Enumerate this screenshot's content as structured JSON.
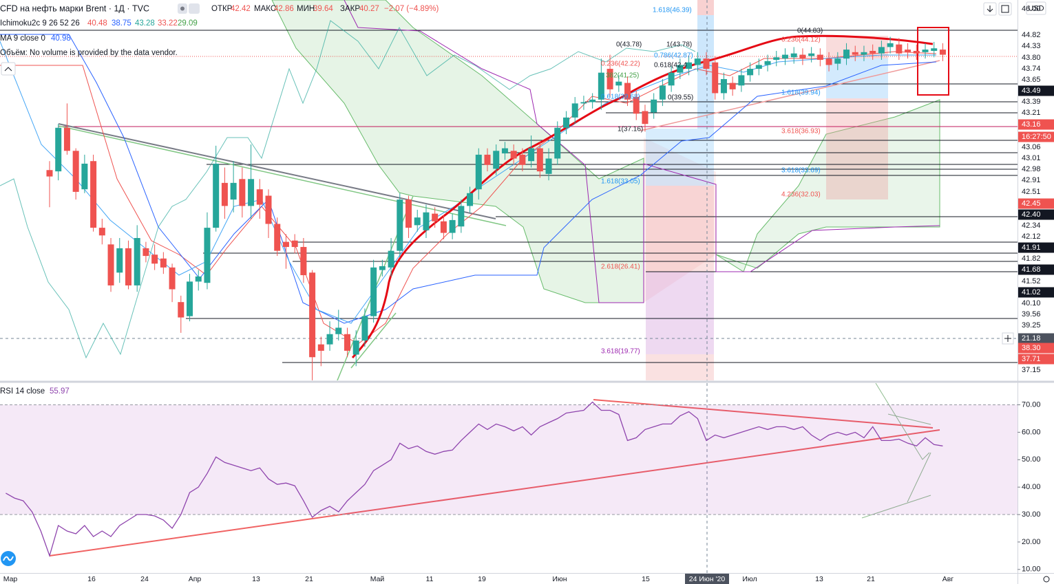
{
  "header": {
    "symbol": "CFD на нефть марки Brent · 1Д · TVC",
    "ohlc": [
      {
        "label": "ОТКР",
        "value": "42.42"
      },
      {
        "label": "МАКС",
        "value": "42.86"
      },
      {
        "label": "МИН",
        "value": "39.64"
      },
      {
        "label": "ЗАКР",
        "value": "40.27"
      }
    ],
    "change": "−2.07 (−4.89%)",
    "ichimoku": {
      "name": "Ichimoku2c 9 26 52 26",
      "values": [
        "40.48",
        "38.75",
        "43.28",
        "33.22",
        "29.09"
      ]
    },
    "ma": {
      "name": "MA 9 close 0",
      "value": "40.98"
    },
    "volume": "Объём: No volume is provided by the data vendor."
  },
  "currency": "USD",
  "chart_data": [
    {
      "type": "candlestick",
      "up_color": "#26a69a",
      "down_color": "#ef5350",
      "ylim": [
        17.89,
        47.57
      ],
      "open": [
        34.3,
        34.2,
        37.6,
        35.8,
        32.8,
        35,
        29.8,
        28.5,
        26.3,
        28.2,
        25.3,
        28.2,
        27.7,
        27.4,
        26.7,
        24,
        22.9,
        25.6,
        25.5,
        29.8,
        33.3,
        32,
        33.6,
        31.5,
        32.8,
        32.3,
        30.1,
        28.7,
        28.8,
        28.3,
        26.3,
        20.7,
        20.7,
        21.5,
        21.5,
        19.9,
        21,
        22.9,
        26.5,
        26.7,
        28,
        32,
        30,
        29.6,
        30.9,
        30.3,
        29.4,
        29.9,
        31.5,
        32.8,
        35.5,
        34.4,
        35.6,
        35.8,
        35.5,
        35,
        36,
        34,
        35.2,
        37.6,
        38.4,
        39.5,
        39.6,
        39.8,
        42.2,
        40.9,
        41.1,
        40,
        38.9,
        38.8,
        39.8,
        40.9,
        41.9,
        42.2,
        42.5,
        43,
        42.7,
        40.3,
        41.1,
        40.9,
        41.7,
        42.2,
        42.5,
        42.9,
        43,
        43.1,
        43.3,
        43.2,
        43.3,
        43,
        42.6,
        43,
        43.5,
        43.3,
        43.6,
        43.4,
        43.9,
        44.1,
        43.7,
        43.6,
        43.5,
        43.6,
        43.7
      ],
      "high": [
        35,
        37.9,
        39.5,
        36,
        35.5,
        35.5,
        30.5,
        29,
        29,
        28.8,
        30,
        28.7,
        28.5,
        27.9,
        27,
        24.5,
        26.2,
        26.5,
        31,
        36.2,
        34.5,
        35,
        34.5,
        36.3,
        33.6,
        32.8,
        30.6,
        29.3,
        29.3,
        29,
        26.5,
        21.3,
        22.5,
        23.4,
        22,
        21.8,
        23.5,
        27.3,
        27.3,
        29,
        32.5,
        32.3,
        31.2,
        31.6,
        31.4,
        30.8,
        30.9,
        32,
        33,
        36,
        36,
        36.3,
        36.5,
        36.3,
        36,
        37,
        36.5,
        36,
        38.1,
        38.9,
        40,
        40.1,
        40.3,
        43,
        43.3,
        41.7,
        41.6,
        40.5,
        39.4,
        40.3,
        41.4,
        42.4,
        43,
        43.2,
        43.5,
        43.5,
        43.2,
        41.9,
        41.6,
        42.2,
        42.7,
        43,
        43.3,
        43.6,
        43.8,
        43.9,
        43.8,
        43.9,
        43.8,
        43.5,
        43.5,
        44.2,
        44,
        44,
        44.1,
        44.4,
        44.7,
        44.6,
        44.2,
        44.1,
        44.2,
        44.3,
        44.2
      ],
      "low": [
        31.4,
        33.5,
        35.5,
        32,
        32.5,
        29.5,
        28.5,
        24.8,
        25.5,
        25,
        24.8,
        27.1,
        26.5,
        26.2,
        24,
        21.6,
        22.5,
        24.9,
        25,
        29.5,
        30.5,
        31,
        30.6,
        30.5,
        30.5,
        29,
        27.6,
        26.6,
        27.8,
        25.5,
        17.9,
        19,
        20.2,
        21,
        19.7,
        19,
        20.5,
        22.4,
        26,
        26,
        27.5,
        29,
        29.5,
        29,
        29.8,
        28.9,
        28.9,
        29.4,
        31,
        32,
        34.2,
        33.9,
        35.1,
        34.7,
        34.2,
        34.5,
        33.7,
        33.5,
        34.7,
        37.1,
        37.9,
        39,
        39.1,
        39,
        40,
        40.4,
        39.3,
        38.2,
        37.3,
        38.3,
        39.3,
        40.4,
        41.4,
        41.7,
        42,
        41.7,
        39.8,
        39.8,
        40.1,
        40.4,
        41.2,
        41.7,
        42,
        42.4,
        42.5,
        42.6,
        42.5,
        42.7,
        42.4,
        42,
        42.1,
        42.5,
        42.8,
        42.8,
        42.9,
        42.9,
        43.4,
        42.9,
        43,
        42.9,
        43,
        43.1,
        42.8
      ],
      "close": [
        33.8,
        37.6,
        35.8,
        32.6,
        34.8,
        29.8,
        29.2,
        25.3,
        28.2,
        25.3,
        29,
        27.6,
        27.0,
        26.7,
        25.0,
        22.8,
        25.6,
        26,
        29.8,
        34.8,
        31.5,
        33.3,
        31.5,
        33.6,
        31.6,
        30.1,
        28,
        28.3,
        28.3,
        26.1,
        19.7,
        20.2,
        21.5,
        22,
        20.2,
        21,
        22.9,
        26.7,
        26.8,
        28,
        32,
        29.8,
        30.6,
        31,
        30.3,
        29.4,
        30.4,
        31.5,
        32.5,
        35.5,
        34.7,
        35.8,
        36,
        35.2,
        34.7,
        36,
        34.2,
        35.2,
        37.6,
        38.4,
        39.5,
        39.6,
        39.8,
        41.9,
        40.6,
        41.2,
        39.8,
        38.7,
        37.9,
        39.8,
        40.9,
        41.9,
        42.5,
        42.7,
        43,
        42.2,
        40.3,
        41.4,
        40.6,
        41.7,
        42.2,
        42.5,
        42.8,
        43.1,
        43.3,
        43.4,
        43,
        43.4,
        42.9,
        42.5,
        43,
        43.7,
        43.3,
        43.5,
        43.4,
        43.9,
        44.2,
        43.4,
        43.5,
        43.4,
        43.7,
        43.8,
        43.3
      ],
      "price_axis_labels": [
        "46.00",
        "44.82",
        "44.33",
        "43.80",
        "43.74",
        "43.65",
        "43.49",
        "43.39",
        "43.21",
        "43.16",
        "16:27:50",
        "43.06",
        "43.01",
        "42.98",
        "42.91",
        "42.51",
        "42.45",
        "42.40",
        "42.34",
        "42.12",
        "41.91",
        "41.82",
        "41.68",
        "41.52",
        "41.02",
        "40.10",
        "39.56",
        "39.25",
        "21.18",
        "38.30",
        "37.71",
        "37.15"
      ],
      "fib_labels": [
        "1.618(46.39)",
        "0(43.78)",
        "1(43.78)",
        "0.236(42.22)",
        "0.786(42.87)",
        "0.618(42.4",
        "382(41.25)",
        "0.618(39.68)",
        "0(39.55)",
        "1(37.16)",
        "0(44.83)",
        "0.236(44.12)",
        "1.618(39.94)",
        "3.618(36.93)",
        "3.618(33.69)",
        "4.236(32.03)",
        "1.618(33.05)",
        "2.618(26.41)",
        "3.618(19.77)"
      ],
      "x_axis_labels": [
        "Мар",
        "16",
        "24",
        "Апр",
        "13",
        "21",
        "Май",
        "11",
        "19",
        "Июн",
        "15",
        "24 Июн '20",
        "Июл",
        "13",
        "21",
        "Авг"
      ]
    },
    {
      "type": "line",
      "title": "RSI 14 close",
      "last_value": "55.97",
      "color": "#8e44ad",
      "band": [
        30,
        70
      ],
      "band_color": "#9c27b0",
      "ylim": [
        8.7,
        77.9
      ],
      "yticks": [
        {
          "value": 70,
          "label": "70.00"
        },
        {
          "value": 60,
          "label": "60.00"
        },
        {
          "value": 50,
          "label": "50.00"
        },
        {
          "value": 40,
          "label": "40.00"
        },
        {
          "value": 30,
          "label": "30.00"
        },
        {
          "value": 20,
          "label": "20.00"
        },
        {
          "value": 10,
          "label": "10.00"
        }
      ],
      "values": [
        37.8,
        36,
        35,
        31,
        24,
        15,
        26,
        24,
        23,
        26,
        22,
        24,
        22,
        26,
        28,
        30,
        30,
        29.5,
        28,
        25,
        30,
        38,
        40,
        45,
        51,
        49,
        48,
        47,
        46,
        47,
        43,
        41,
        41.5,
        40.5,
        35,
        29,
        31.5,
        33,
        31,
        35,
        38,
        41,
        46,
        48,
        50,
        56,
        54,
        55,
        53,
        52,
        53,
        53.5,
        57,
        60,
        63,
        61,
        63,
        62,
        60.5,
        62,
        59,
        62,
        63.5,
        65,
        67,
        67.5,
        68,
        71,
        68,
        68,
        66.5,
        57,
        58,
        61,
        62,
        63,
        63,
        66,
        67.5,
        65,
        57,
        59,
        58,
        59,
        60,
        61,
        62,
        61,
        62,
        62,
        61,
        62,
        59,
        57,
        59,
        60,
        59,
        60,
        58,
        62,
        57,
        57,
        57.5,
        56,
        55,
        58,
        55.5,
        55
      ]
    }
  ]
}
